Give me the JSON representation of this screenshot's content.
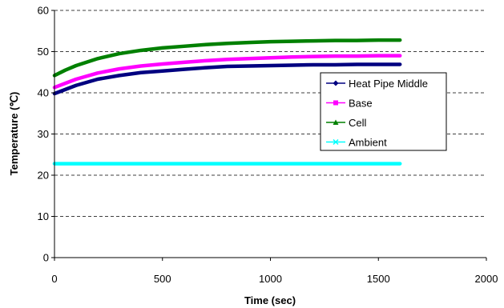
{
  "chart_data": {
    "type": "line",
    "title": "",
    "xlabel": "Time (sec)",
    "ylabel": "Temperature (℃)",
    "xlim": [
      0,
      2000
    ],
    "ylim": [
      0,
      60
    ],
    "xticks": [
      "0",
      "500",
      "1000",
      "1500",
      "2000"
    ],
    "yticks": [
      "0",
      "10",
      "20",
      "30",
      "40",
      "50",
      "60"
    ],
    "grid": "horizontal-dashed",
    "legend_position": "right",
    "series": [
      {
        "name": "Heat Pipe Middle",
        "color": "#000080",
        "marker": "diamond",
        "x": [
          0,
          50,
          100,
          200,
          300,
          400,
          500,
          600,
          700,
          800,
          900,
          1000,
          1100,
          1200,
          1300,
          1400,
          1500,
          1600
        ],
        "y": [
          39.8,
          40.8,
          41.8,
          43.3,
          44.2,
          44.9,
          45.3,
          45.7,
          46.1,
          46.4,
          46.5,
          46.6,
          46.7,
          46.8,
          46.8,
          46.9,
          46.9,
          46.9
        ]
      },
      {
        "name": "Base",
        "color": "#FF00FF",
        "marker": "square",
        "x": [
          0,
          50,
          100,
          200,
          300,
          400,
          500,
          600,
          700,
          800,
          900,
          1000,
          1100,
          1200,
          1300,
          1400,
          1500,
          1600
        ],
        "y": [
          41.3,
          42.3,
          43.3,
          44.8,
          45.8,
          46.5,
          47.0,
          47.4,
          47.8,
          48.1,
          48.3,
          48.5,
          48.7,
          48.8,
          48.9,
          48.9,
          49.0,
          49.0
        ]
      },
      {
        "name": "Cell",
        "color": "#008000",
        "marker": "triangle",
        "x": [
          0,
          50,
          100,
          200,
          300,
          400,
          500,
          600,
          700,
          800,
          900,
          1000,
          1100,
          1200,
          1300,
          1400,
          1500,
          1600
        ],
        "y": [
          44.2,
          45.5,
          46.6,
          48.3,
          49.5,
          50.3,
          50.9,
          51.3,
          51.7,
          52.0,
          52.2,
          52.4,
          52.5,
          52.6,
          52.7,
          52.7,
          52.8,
          52.8
        ]
      },
      {
        "name": "Ambient",
        "color": "#00FFFF",
        "marker": "x",
        "x": [
          0,
          200,
          400,
          600,
          800,
          1000,
          1200,
          1400,
          1600
        ],
        "y": [
          22.8,
          22.8,
          22.8,
          22.8,
          22.8,
          22.8,
          22.8,
          22.8,
          22.8
        ]
      }
    ]
  }
}
